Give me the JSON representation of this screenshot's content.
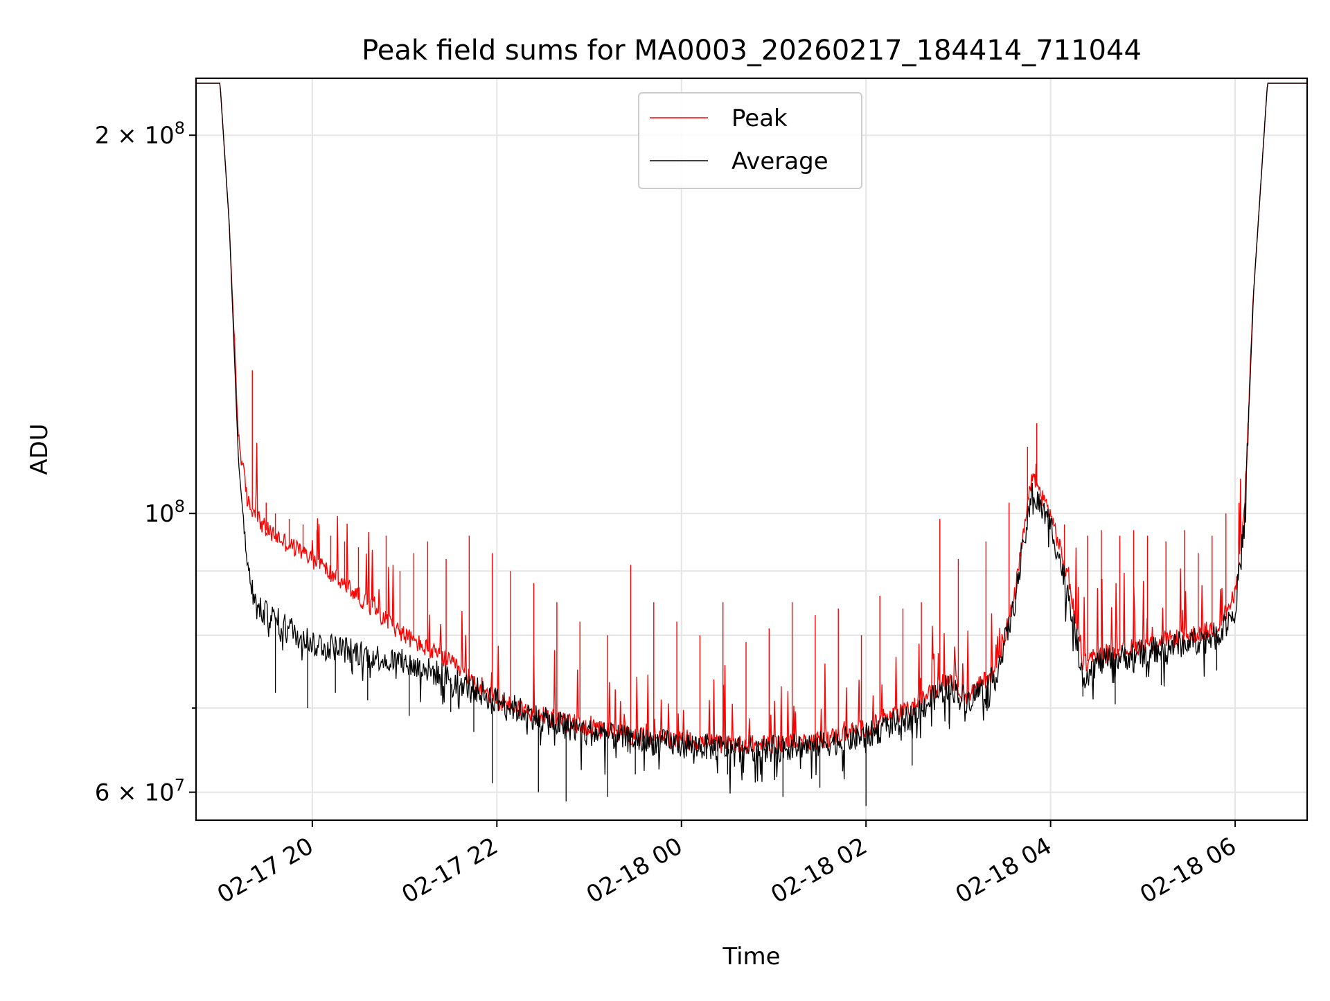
{
  "chart_data": {
    "type": "line",
    "title": "Peak field sums for MA0003_20260217_184414_711044",
    "xlabel": "Time",
    "ylabel": "ADU",
    "y_scale": "log",
    "ylim": [
      57000000,
      222000000
    ],
    "x_unit": "hours since 02-17 00:00",
    "xlim": [
      18.74,
      30.78
    ],
    "x_ticks": [
      {
        "value": 20,
        "label": "02-17 20"
      },
      {
        "value": 22,
        "label": "02-17 22"
      },
      {
        "value": 24,
        "label": "02-18 00"
      },
      {
        "value": 26,
        "label": "02-18 02"
      },
      {
        "value": 28,
        "label": "02-18 04"
      },
      {
        "value": 30,
        "label": "02-18 06"
      }
    ],
    "y_major_ticks": [
      {
        "value": 60000000,
        "mantissa": "6",
        "exponent": "7"
      },
      {
        "value": 100000000,
        "mantissa": "",
        "exponent": "8"
      },
      {
        "value": 200000000,
        "mantissa": "2",
        "exponent": "8"
      }
    ],
    "y_minor_gridlines": [
      70000000,
      80000000,
      90000000
    ],
    "grid": true,
    "legend": {
      "placement": "top-center",
      "entries": [
        "Peak",
        "Average"
      ]
    },
    "series": [
      {
        "name": "Peak",
        "color": "#ff0000",
        "envelope": [
          [
            18.74,
            220000000
          ],
          [
            19.0,
            220000000
          ],
          [
            19.1,
            170000000
          ],
          [
            19.2,
            115000000
          ],
          [
            19.3,
            102000000
          ],
          [
            19.5,
            97000000
          ],
          [
            20.0,
            92000000
          ],
          [
            20.5,
            86000000
          ],
          [
            21.0,
            80000000
          ],
          [
            21.5,
            76000000
          ],
          [
            22.0,
            71000000
          ],
          [
            22.5,
            69000000
          ],
          [
            23.0,
            67500000
          ],
          [
            23.5,
            66500000
          ],
          [
            24.0,
            66000000
          ],
          [
            24.5,
            65500000
          ],
          [
            25.0,
            65500000
          ],
          [
            25.5,
            66000000
          ],
          [
            26.0,
            67500000
          ],
          [
            26.5,
            70000000
          ],
          [
            26.9,
            74000000
          ],
          [
            27.1,
            71500000
          ],
          [
            27.4,
            75000000
          ],
          [
            27.6,
            85000000
          ],
          [
            27.8,
            107000000
          ],
          [
            28.0,
            100000000
          ],
          [
            28.2,
            88000000
          ],
          [
            28.35,
            76000000
          ],
          [
            28.5,
            77000000
          ],
          [
            29.0,
            78500000
          ],
          [
            29.5,
            80000000
          ],
          [
            29.8,
            81000000
          ],
          [
            30.0,
            86000000
          ],
          [
            30.1,
            100000000
          ],
          [
            30.2,
            150000000
          ],
          [
            30.35,
            220000000
          ],
          [
            30.78,
            220000000
          ]
        ],
        "spikes": [
          [
            19.35,
            130000000
          ],
          [
            19.5,
            102000000
          ],
          [
            19.6,
            100000000
          ],
          [
            19.75,
            99000000
          ],
          [
            19.9,
            98000000
          ],
          [
            20.05,
            97000000
          ],
          [
            20.2,
            96000000
          ],
          [
            20.35,
            95000000
          ],
          [
            20.5,
            94000000
          ],
          [
            20.65,
            93000000
          ],
          [
            20.8,
            96000000
          ],
          [
            20.95,
            90000000
          ],
          [
            21.1,
            93000000
          ],
          [
            21.25,
            95000000
          ],
          [
            21.45,
            92000000
          ],
          [
            21.7,
            96000000
          ],
          [
            21.95,
            93000000
          ],
          [
            22.15,
            90000000
          ],
          [
            22.4,
            88000000
          ],
          [
            22.65,
            85000000
          ],
          [
            22.9,
            82000000
          ],
          [
            23.2,
            80000000
          ],
          [
            23.45,
            91000000
          ],
          [
            23.7,
            85000000
          ],
          [
            23.95,
            82000000
          ],
          [
            24.2,
            80000000
          ],
          [
            24.45,
            85000000
          ],
          [
            24.7,
            79000000
          ],
          [
            24.95,
            81000000
          ],
          [
            25.2,
            85000000
          ],
          [
            25.45,
            83000000
          ],
          [
            25.7,
            84000000
          ],
          [
            25.95,
            80000000
          ],
          [
            26.15,
            86000000
          ],
          [
            26.4,
            84000000
          ],
          [
            26.6,
            85000000
          ],
          [
            26.8,
            99000000
          ],
          [
            27.0,
            92000000
          ],
          [
            27.3,
            95000000
          ],
          [
            27.55,
            102000000
          ],
          [
            27.75,
            113000000
          ],
          [
            27.85,
            118000000
          ],
          [
            28.15,
            98000000
          ],
          [
            28.4,
            96000000
          ],
          [
            28.55,
            97000000
          ],
          [
            28.75,
            96000000
          ],
          [
            28.9,
            97000000
          ],
          [
            29.05,
            96000000
          ],
          [
            29.25,
            95000000
          ],
          [
            29.45,
            97000000
          ],
          [
            29.6,
            93000000
          ],
          [
            29.75,
            96000000
          ],
          [
            29.9,
            100000000
          ]
        ]
      },
      {
        "name": "Average",
        "color": "#000000",
        "envelope": [
          [
            18.74,
            220000000
          ],
          [
            19.0,
            220000000
          ],
          [
            19.1,
            170000000
          ],
          [
            19.2,
            110000000
          ],
          [
            19.3,
            90000000
          ],
          [
            19.4,
            84000000
          ],
          [
            19.7,
            81500000
          ],
          [
            20.0,
            79000000
          ],
          [
            20.5,
            77500000
          ],
          [
            21.0,
            76000000
          ],
          [
            21.5,
            74000000
          ],
          [
            22.0,
            71000000
          ],
          [
            22.5,
            68500000
          ],
          [
            23.0,
            67000000
          ],
          [
            23.5,
            66000000
          ],
          [
            24.0,
            65500000
          ],
          [
            24.5,
            65000000
          ],
          [
            25.0,
            65000000
          ],
          [
            25.5,
            65500000
          ],
          [
            26.0,
            66500000
          ],
          [
            26.5,
            69000000
          ],
          [
            26.9,
            73000000
          ],
          [
            27.1,
            71000000
          ],
          [
            27.4,
            74000000
          ],
          [
            27.6,
            84000000
          ],
          [
            27.8,
            104000000
          ],
          [
            28.0,
            98000000
          ],
          [
            28.2,
            86000000
          ],
          [
            28.35,
            74000000
          ],
          [
            28.5,
            76000000
          ],
          [
            29.0,
            77500000
          ],
          [
            29.5,
            79000000
          ],
          [
            29.8,
            80000000
          ],
          [
            30.0,
            84000000
          ],
          [
            30.1,
            98000000
          ],
          [
            30.2,
            150000000
          ],
          [
            30.35,
            220000000
          ],
          [
            30.78,
            220000000
          ]
        ],
        "dips": [
          [
            19.6,
            72000000
          ],
          [
            19.95,
            70000000
          ],
          [
            20.25,
            72000000
          ],
          [
            20.6,
            71000000
          ],
          [
            21.05,
            69000000
          ],
          [
            21.5,
            69500000
          ],
          [
            21.75,
            67000000
          ],
          [
            21.95,
            61000000
          ],
          [
            22.45,
            60000000
          ],
          [
            22.75,
            59000000
          ],
          [
            23.2,
            59500000
          ],
          [
            23.5,
            62000000
          ],
          [
            24.5,
            62000000
          ],
          [
            25.1,
            59500000
          ],
          [
            25.5,
            60500000
          ],
          [
            26.0,
            58500000
          ],
          [
            26.5,
            63000000
          ],
          [
            26.9,
            68000000
          ],
          [
            27.3,
            70000000
          ],
          [
            28.35,
            71500000
          ],
          [
            28.7,
            70500000
          ],
          [
            29.2,
            73000000
          ],
          [
            29.8,
            75000000
          ]
        ]
      }
    ]
  }
}
